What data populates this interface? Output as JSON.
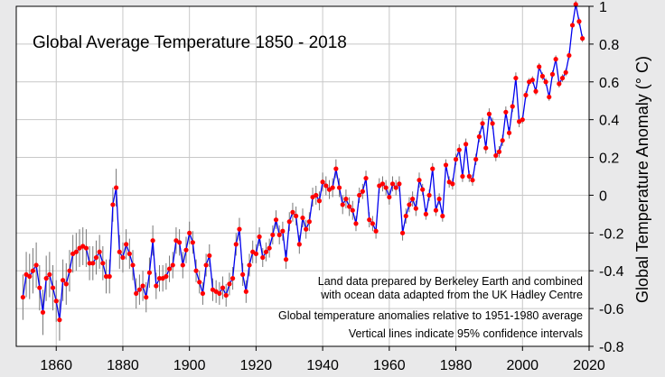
{
  "chart_data": {
    "type": "line",
    "title": "Global Average Temperature 1850 - 2018",
    "xlabel": "",
    "ylabel": "Global Temperature Anomaly (° C)",
    "xlim": [
      1848,
      2020
    ],
    "ylim": [
      -0.8,
      1.0
    ],
    "xticks": [
      1860,
      1880,
      1900,
      1920,
      1940,
      1960,
      1980,
      2000,
      2020
    ],
    "xtick_labels": [
      "1860",
      "1880",
      "1900",
      "1920",
      "1940",
      "1960",
      "1980",
      "2000",
      "2020"
    ],
    "yticks": [
      -0.8,
      -0.6,
      -0.4,
      -0.2,
      0,
      0.2,
      0.4,
      0.6,
      0.8,
      1.0
    ],
    "ytick_labels": [
      "-0.8",
      "-0.6",
      "-0.4",
      "-0.2",
      "0",
      "0.2",
      "0.4",
      "0.6",
      "0.8",
      "1"
    ],
    "grid": true,
    "y_axis_side": "right",
    "colors": {
      "line": "#0000ee",
      "marker": "#ff0000",
      "error_bar": "#777777",
      "grid": "#c8c8c8",
      "plot_bg": "#ffffff",
      "frame_bg": "#e9e9ea"
    },
    "annotations": [
      "Land data prepared by Berkeley Earth and combined",
      "with ocean data adapted from the UK Hadley Centre",
      "Global temperature anomalies relative to 1951-1980 average",
      "Vertical lines indicate 95% confidence intervals"
    ],
    "x": [
      1850,
      1851,
      1852,
      1853,
      1854,
      1855,
      1856,
      1857,
      1858,
      1859,
      1860,
      1861,
      1862,
      1863,
      1864,
      1865,
      1866,
      1867,
      1868,
      1869,
      1870,
      1871,
      1872,
      1873,
      1874,
      1875,
      1876,
      1877,
      1878,
      1879,
      1880,
      1881,
      1882,
      1883,
      1884,
      1885,
      1886,
      1887,
      1888,
      1889,
      1890,
      1891,
      1892,
      1893,
      1894,
      1895,
      1896,
      1897,
      1898,
      1899,
      1900,
      1901,
      1902,
      1903,
      1904,
      1905,
      1906,
      1907,
      1908,
      1909,
      1910,
      1911,
      1912,
      1913,
      1914,
      1915,
      1916,
      1917,
      1918,
      1919,
      1920,
      1921,
      1922,
      1923,
      1924,
      1925,
      1926,
      1927,
      1928,
      1929,
      1930,
      1931,
      1932,
      1933,
      1934,
      1935,
      1936,
      1937,
      1938,
      1939,
      1940,
      1941,
      1942,
      1943,
      1944,
      1945,
      1946,
      1947,
      1948,
      1949,
      1950,
      1951,
      1952,
      1953,
      1954,
      1955,
      1956,
      1957,
      1958,
      1959,
      1960,
      1961,
      1962,
      1963,
      1964,
      1965,
      1966,
      1967,
      1968,
      1969,
      1970,
      1971,
      1972,
      1973,
      1974,
      1975,
      1976,
      1977,
      1978,
      1979,
      1980,
      1981,
      1982,
      1983,
      1984,
      1985,
      1986,
      1987,
      1988,
      1989,
      1990,
      1991,
      1992,
      1993,
      1994,
      1995,
      1996,
      1997,
      1998,
      1999,
      2000,
      2001,
      2002,
      2003,
      2004,
      2005,
      2006,
      2007,
      2008,
      2009,
      2010,
      2011,
      2012,
      2013,
      2014,
      2015,
      2016,
      2017,
      2018
    ],
    "values": [
      -0.54,
      -0.42,
      -0.43,
      -0.4,
      -0.37,
      -0.49,
      -0.62,
      -0.44,
      -0.42,
      -0.49,
      -0.56,
      -0.66,
      -0.45,
      -0.47,
      -0.4,
      -0.31,
      -0.3,
      -0.28,
      -0.27,
      -0.28,
      -0.36,
      -0.36,
      -0.33,
      -0.3,
      -0.36,
      -0.43,
      -0.43,
      -0.05,
      0.04,
      -0.3,
      -0.33,
      -0.26,
      -0.31,
      -0.37,
      -0.52,
      -0.5,
      -0.48,
      -0.54,
      -0.41,
      -0.24,
      -0.48,
      -0.44,
      -0.44,
      -0.43,
      -0.39,
      -0.37,
      -0.24,
      -0.25,
      -0.37,
      -0.29,
      -0.2,
      -0.25,
      -0.4,
      -0.46,
      -0.52,
      -0.37,
      -0.32,
      -0.5,
      -0.51,
      -0.52,
      -0.49,
      -0.53,
      -0.47,
      -0.44,
      -0.26,
      -0.18,
      -0.42,
      -0.51,
      -0.37,
      -0.3,
      -0.31,
      -0.22,
      -0.33,
      -0.3,
      -0.28,
      -0.21,
      -0.13,
      -0.21,
      -0.19,
      -0.34,
      -0.14,
      -0.09,
      -0.11,
      -0.26,
      -0.12,
      -0.18,
      -0.14,
      -0.01,
      0.0,
      -0.03,
      0.07,
      0.05,
      0.03,
      0.04,
      0.14,
      0.04,
      -0.05,
      -0.02,
      -0.06,
      -0.08,
      -0.15,
      0.0,
      0.02,
      0.09,
      -0.13,
      -0.15,
      -0.19,
      0.05,
      0.06,
      0.04,
      -0.01,
      0.06,
      0.04,
      0.06,
      -0.2,
      -0.11,
      -0.05,
      -0.02,
      -0.07,
      0.08,
      0.03,
      -0.1,
      0.0,
      0.14,
      -0.08,
      -0.02,
      -0.11,
      0.16,
      0.07,
      0.06,
      0.19,
      0.24,
      0.1,
      0.27,
      0.1,
      0.08,
      0.19,
      0.31,
      0.38,
      0.25,
      0.43,
      0.38,
      0.21,
      0.23,
      0.29,
      0.44,
      0.33,
      0.47,
      0.62,
      0.39,
      0.4,
      0.53,
      0.6,
      0.61,
      0.55,
      0.68,
      0.63,
      0.6,
      0.52,
      0.64,
      0.72,
      0.59,
      0.62,
      0.65,
      0.74,
      0.9,
      1.01,
      0.92,
      0.83
    ],
    "errors": [
      0.12,
      0.12,
      0.12,
      0.12,
      0.12,
      0.12,
      0.12,
      0.12,
      0.12,
      0.12,
      0.11,
      0.11,
      0.11,
      0.11,
      0.11,
      0.1,
      0.1,
      0.1,
      0.1,
      0.1,
      0.09,
      0.09,
      0.09,
      0.09,
      0.09,
      0.09,
      0.09,
      0.09,
      0.1,
      0.09,
      0.08,
      0.08,
      0.08,
      0.08,
      0.08,
      0.08,
      0.08,
      0.08,
      0.08,
      0.08,
      0.07,
      0.07,
      0.07,
      0.07,
      0.07,
      0.07,
      0.07,
      0.07,
      0.07,
      0.07,
      0.06,
      0.06,
      0.06,
      0.06,
      0.06,
      0.06,
      0.06,
      0.06,
      0.06,
      0.06,
      0.06,
      0.06,
      0.06,
      0.06,
      0.06,
      0.06,
      0.06,
      0.06,
      0.06,
      0.06,
      0.05,
      0.05,
      0.05,
      0.05,
      0.05,
      0.05,
      0.05,
      0.05,
      0.05,
      0.05,
      0.05,
      0.05,
      0.05,
      0.05,
      0.05,
      0.05,
      0.05,
      0.05,
      0.05,
      0.05,
      0.05,
      0.05,
      0.05,
      0.05,
      0.05,
      0.05,
      0.05,
      0.05,
      0.05,
      0.05,
      0.04,
      0.04,
      0.04,
      0.04,
      0.04,
      0.04,
      0.04,
      0.04,
      0.04,
      0.04,
      0.04,
      0.04,
      0.04,
      0.04,
      0.04,
      0.04,
      0.04,
      0.04,
      0.04,
      0.04,
      0.03,
      0.03,
      0.03,
      0.03,
      0.03,
      0.03,
      0.03,
      0.03,
      0.03,
      0.03,
      0.03,
      0.03,
      0.03,
      0.03,
      0.03,
      0.03,
      0.03,
      0.03,
      0.03,
      0.03,
      0.03,
      0.03,
      0.03,
      0.03,
      0.03,
      0.03,
      0.03,
      0.03,
      0.03,
      0.03,
      0.02,
      0.02,
      0.02,
      0.02,
      0.02,
      0.02,
      0.02,
      0.02,
      0.02,
      0.02,
      0.02,
      0.02,
      0.02,
      0.02,
      0.02,
      0.02,
      0.02,
      0.02,
      0.02
    ]
  }
}
